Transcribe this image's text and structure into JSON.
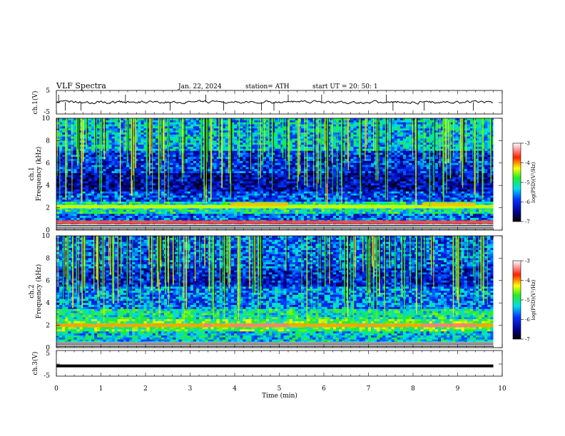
{
  "header": {
    "title": "VLF  Spectra",
    "date": "Jan. 22, 2024",
    "station": "station= ATH",
    "start": "start  UT  =    20: 50: 1"
  },
  "chart_data": [
    {
      "type": "line",
      "ylabel": "ch.1(V)",
      "yticks": [
        "5",
        "-5"
      ],
      "ylim": [
        -5,
        5
      ],
      "xlim": [
        0,
        10
      ],
      "description_series": "broadband waveform, small noise near 0 V with sparse spikes",
      "spikes_min": [
        0.05,
        0.2,
        0.55,
        1.55,
        2.55,
        3.35,
        3.75,
        4.6,
        4.88,
        5.2,
        5.95,
        7.4,
        7.55,
        8.25,
        9.35
      ]
    },
    {
      "type": "heatmap",
      "ylabel_top": "ch.1",
      "ylabel": "Frequency  (kHz)",
      "yticks": [
        "10",
        "8",
        "6",
        "4",
        "2",
        "0"
      ],
      "ylim": [
        0,
        10
      ],
      "xlim": [
        0,
        9.8
      ],
      "colorbar": {
        "label": "log(PSD)(V²/Hz)",
        "ticks": [
          "-3",
          "-4",
          "-5",
          "-6",
          "-7"
        ],
        "range": [
          -7,
          -3
        ]
      },
      "bands_khz": [
        {
          "freq": 2.1,
          "level": -4.6,
          "note": "persistent band"
        },
        {
          "freq": 2.3,
          "level": -4.3,
          "segments_min": [
            [
              3.9,
              5.2
            ],
            [
              8.2,
              9.4
            ]
          ]
        },
        {
          "freq": 0.7,
          "level": -3.6,
          "note": "low frequency line"
        }
      ]
    },
    {
      "type": "heatmap",
      "ylabel_top": "ch.2",
      "ylabel": "Frequency  (kHz)",
      "yticks": [
        "10",
        "8",
        "6",
        "4",
        "2",
        "0"
      ],
      "ylim": [
        0,
        10
      ],
      "xlim": [
        0,
        9.8
      ],
      "colorbar": {
        "label": "log(PSD)(V²/Hz)",
        "ticks": [
          "-3",
          "-4",
          "-5",
          "-6",
          "-7"
        ],
        "range": [
          -7,
          -3
        ]
      },
      "bands_khz": [
        {
          "freq": 2.0,
          "level": -4.2,
          "note": "strong persistent band"
        },
        {
          "freq": 2.0,
          "level": -3.4,
          "segments_min": [
            [
              3.3,
              3.5
            ],
            [
              3.9,
              5.2
            ],
            [
              8.2,
              9.4
            ]
          ]
        }
      ]
    },
    {
      "type": "line",
      "ylabel": "ch.3(V)",
      "yticks": [
        "5",
        "-5"
      ],
      "ylim": [
        -5,
        5
      ],
      "xlim": [
        0,
        10
      ],
      "constant_value": -1.2
    }
  ],
  "xaxis": {
    "label": "Time  (min)",
    "ticks": [
      "0",
      "1",
      "2",
      "3",
      "4",
      "5",
      "6",
      "7",
      "8",
      "9",
      "10"
    ]
  }
}
